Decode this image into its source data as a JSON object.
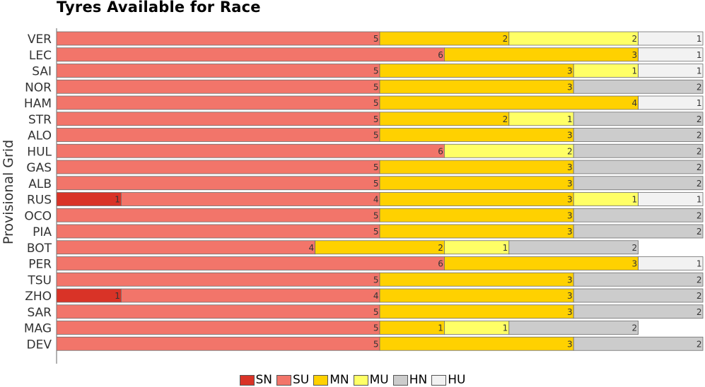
{
  "chart_data": {
    "type": "bar",
    "orientation": "horizontal",
    "stacked": true,
    "title": "Tyres Available for Race",
    "ylabel": "Provisional Grid",
    "xlabel": "",
    "grid": false,
    "legend_position": "bottom",
    "categories": [
      "VER",
      "LEC",
      "SAI",
      "NOR",
      "HAM",
      "STR",
      "ALO",
      "HUL",
      "GAS",
      "ALB",
      "RUS",
      "OCO",
      "PIA",
      "BOT",
      "PER",
      "TSU",
      "ZHO",
      "SAR",
      "MAG",
      "DEV"
    ],
    "series": [
      {
        "name": "SN",
        "color": "#d93327",
        "values": [
          0,
          0,
          0,
          0,
          0,
          0,
          0,
          0,
          0,
          0,
          1,
          0,
          0,
          0,
          0,
          0,
          1,
          0,
          0,
          0
        ]
      },
      {
        "name": "SU",
        "color": "#f2756a",
        "values": [
          5,
          6,
          5,
          5,
          5,
          5,
          5,
          6,
          5,
          5,
          4,
          5,
          5,
          4,
          6,
          5,
          4,
          5,
          5,
          5
        ]
      },
      {
        "name": "MN",
        "color": "#ffd100",
        "values": [
          2,
          3,
          3,
          3,
          4,
          2,
          3,
          0,
          3,
          3,
          3,
          3,
          3,
          2,
          3,
          3,
          3,
          3,
          1,
          3
        ]
      },
      {
        "name": "MU",
        "color": "#ffff66",
        "values": [
          2,
          0,
          1,
          0,
          0,
          1,
          0,
          2,
          0,
          0,
          1,
          0,
          0,
          1,
          0,
          0,
          0,
          0,
          1,
          0
        ]
      },
      {
        "name": "HN",
        "color": "#cccccc",
        "values": [
          0,
          0,
          0,
          2,
          0,
          2,
          2,
          2,
          2,
          2,
          0,
          2,
          2,
          2,
          0,
          2,
          2,
          2,
          2,
          2
        ]
      },
      {
        "name": "HU",
        "color": "#f2f2f2",
        "values": [
          1,
          1,
          1,
          0,
          1,
          0,
          0,
          0,
          0,
          0,
          1,
          0,
          0,
          0,
          1,
          0,
          0,
          0,
          0,
          0
        ]
      }
    ]
  }
}
